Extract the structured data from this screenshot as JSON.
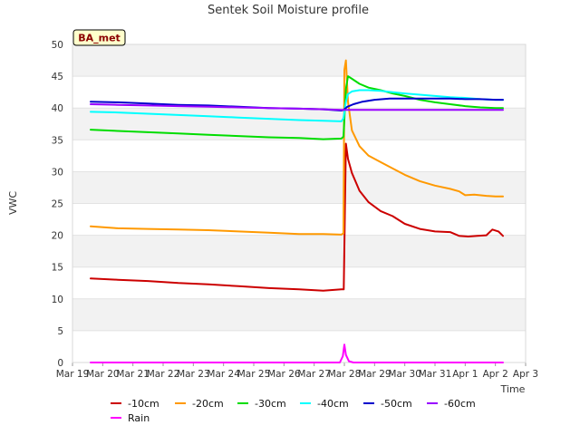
{
  "chart_data": {
    "type": "line",
    "title": "Sentek Soil Moisture profile",
    "xlabel": "Time",
    "ylabel": "VWC",
    "badge": "BA_met",
    "ylim": [
      0,
      50
    ],
    "yticks": [
      0,
      5,
      10,
      15,
      20,
      25,
      30,
      35,
      40,
      45,
      50
    ],
    "xlim": [
      0,
      15
    ],
    "xticks": [
      {
        "value": 0,
        "label": "Mar 19"
      },
      {
        "value": 1,
        "label": "Mar 20"
      },
      {
        "value": 2,
        "label": "Mar 21"
      },
      {
        "value": 3,
        "label": "Mar 22"
      },
      {
        "value": 4,
        "label": "Mar 23"
      },
      {
        "value": 5,
        "label": "Mar 24"
      },
      {
        "value": 6,
        "label": "Mar 25"
      },
      {
        "value": 7,
        "label": "Mar 26"
      },
      {
        "value": 8,
        "label": "Mar 27"
      },
      {
        "value": 9,
        "label": "Mar 28"
      },
      {
        "value": 10,
        "label": "Mar 29"
      },
      {
        "value": 11,
        "label": "Mar 30"
      },
      {
        "value": 12,
        "label": "Mar 31"
      },
      {
        "value": 13,
        "label": "Apr 1"
      },
      {
        "value": 14,
        "label": "Apr 2"
      },
      {
        "value": 15,
        "label": "Apr 3"
      }
    ],
    "grid": "horizontal bands",
    "legend_position": "bottom",
    "series": [
      {
        "name": "-10cm",
        "color": "#cc0000",
        "x": [
          0.6,
          1.5,
          2.5,
          3.5,
          4.5,
          5.5,
          6.5,
          7.5,
          8.3,
          8.9,
          8.98,
          9.05,
          9.12,
          9.25,
          9.5,
          9.8,
          10.2,
          10.6,
          11.0,
          11.5,
          12.0,
          12.5,
          12.8,
          13.1,
          13.4,
          13.7,
          13.9,
          14.1,
          14.25
        ],
        "values": [
          13.2,
          13.0,
          12.8,
          12.5,
          12.3,
          12.0,
          11.7,
          11.5,
          11.3,
          11.5,
          11.5,
          34.4,
          32.0,
          29.8,
          27.0,
          25.2,
          23.8,
          23.0,
          21.8,
          21.0,
          20.6,
          20.5,
          19.9,
          19.8,
          19.9,
          20.0,
          20.9,
          20.6,
          19.9
        ]
      },
      {
        "name": "-20cm",
        "color": "#ff9900",
        "x": [
          0.6,
          1.5,
          2.5,
          3.5,
          4.5,
          5.5,
          6.5,
          7.5,
          8.3,
          8.9,
          8.97,
          9.0,
          9.05,
          9.12,
          9.25,
          9.5,
          9.8,
          10.2,
          10.6,
          11.0,
          11.5,
          12.0,
          12.5,
          12.8,
          13.0,
          13.3,
          13.7,
          14.0,
          14.25
        ],
        "values": [
          21.4,
          21.1,
          21.0,
          20.9,
          20.8,
          20.6,
          20.4,
          20.2,
          20.2,
          20.1,
          20.3,
          46.0,
          47.5,
          41.0,
          36.5,
          34.0,
          32.5,
          31.5,
          30.5,
          29.5,
          28.5,
          27.8,
          27.3,
          26.9,
          26.3,
          26.4,
          26.2,
          26.1,
          26.1
        ]
      },
      {
        "name": "-30cm",
        "color": "#00dd00",
        "x": [
          0.6,
          1.5,
          2.5,
          3.5,
          4.5,
          5.5,
          6.5,
          7.5,
          8.3,
          8.9,
          8.97,
          9.05,
          9.12,
          9.25,
          9.5,
          9.8,
          10.2,
          10.6,
          11.0,
          11.5,
          12.0,
          12.5,
          13.0,
          13.5,
          14.0,
          14.25
        ],
        "values": [
          36.6,
          36.4,
          36.2,
          36.0,
          35.8,
          35.6,
          35.4,
          35.3,
          35.1,
          35.2,
          35.5,
          43.0,
          45.0,
          44.6,
          43.8,
          43.2,
          42.8,
          42.3,
          41.9,
          41.3,
          40.9,
          40.6,
          40.3,
          40.1,
          40.0,
          40.0
        ]
      },
      {
        "name": "-40cm",
        "color": "#00ffff",
        "x": [
          0.6,
          1.5,
          2.5,
          3.5,
          4.5,
          5.5,
          6.5,
          7.5,
          8.3,
          8.9,
          8.97,
          9.05,
          9.12,
          9.25,
          9.5,
          9.8,
          10.2,
          10.6,
          11.0,
          11.5,
          12.0,
          12.5,
          13.0,
          13.5,
          14.0,
          14.25
        ],
        "values": [
          39.4,
          39.3,
          39.1,
          38.9,
          38.7,
          38.5,
          38.3,
          38.1,
          38.0,
          37.9,
          38.4,
          41.0,
          42.2,
          42.6,
          42.8,
          42.8,
          42.7,
          42.5,
          42.3,
          42.1,
          41.9,
          41.7,
          41.6,
          41.4,
          41.3,
          41.3
        ]
      },
      {
        "name": "-50cm",
        "color": "#0000cc",
        "x": [
          0.6,
          1.5,
          2.5,
          3.5,
          4.5,
          5.5,
          6.5,
          7.5,
          8.3,
          8.9,
          8.97,
          9.1,
          9.3,
          9.6,
          10.0,
          10.5,
          11.0,
          11.5,
          12.0,
          12.5,
          13.0,
          13.5,
          14.0,
          14.25
        ],
        "values": [
          41.0,
          40.9,
          40.7,
          40.5,
          40.4,
          40.2,
          40.0,
          39.9,
          39.8,
          39.6,
          39.7,
          40.2,
          40.6,
          41.0,
          41.3,
          41.5,
          41.5,
          41.5,
          41.5,
          41.5,
          41.4,
          41.4,
          41.3,
          41.3
        ]
      },
      {
        "name": "-60cm",
        "color": "#9900ff",
        "x": [
          0.6,
          1.5,
          2.5,
          3.5,
          4.5,
          5.5,
          6.5,
          7.5,
          8.3,
          8.9,
          9.0,
          9.5,
          10.5,
          11.5,
          12.5,
          13.5,
          14.25
        ],
        "values": [
          40.6,
          40.5,
          40.4,
          40.3,
          40.2,
          40.1,
          40.0,
          39.9,
          39.8,
          39.7,
          39.7,
          39.7,
          39.7,
          39.7,
          39.7,
          39.7,
          39.7
        ]
      },
      {
        "name": "Rain",
        "color": "#ff00ff",
        "x": [
          0.6,
          8.85,
          8.95,
          9.0,
          9.05,
          9.15,
          9.3,
          14.25
        ],
        "values": [
          0,
          0,
          1.0,
          2.8,
          1.2,
          0.2,
          0,
          0
        ]
      }
    ]
  }
}
